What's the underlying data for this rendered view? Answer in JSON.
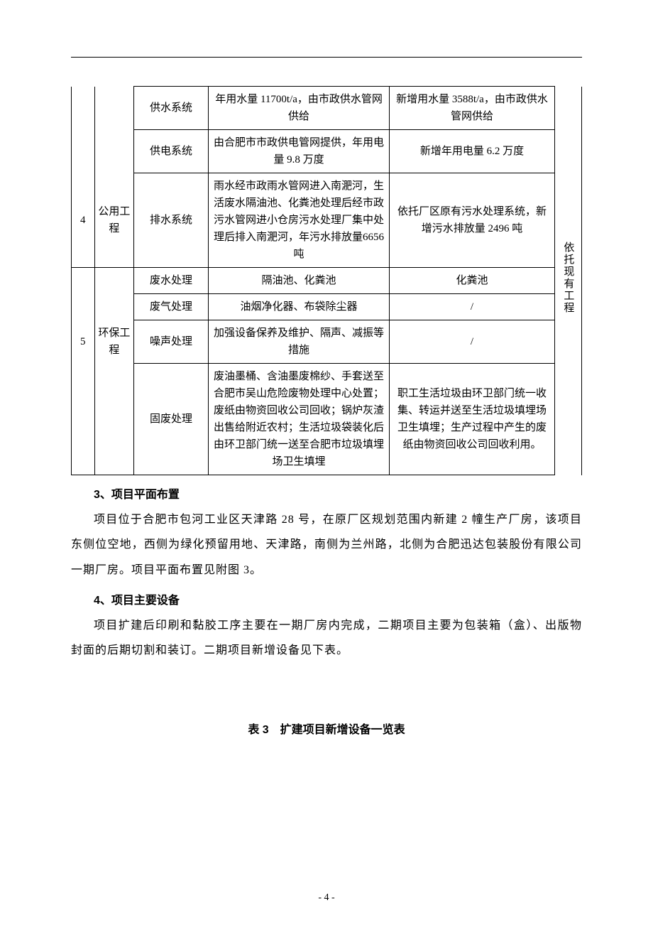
{
  "table": {
    "last_col": "依托现有工程",
    "sections": [
      {
        "idx": "4",
        "category": "公用工程",
        "rows": [
          {
            "sys": "供水系统",
            "d1": "年用水量 11700t/a，由市政供水管网供给",
            "d2": "新增用水量 3588t/a，由市政供水管网供给"
          },
          {
            "sys": "供电系统",
            "d1": "由合肥市市政供电管网提供，年用电量 9.8 万度",
            "d2": "新增年用电量 6.2 万度"
          },
          {
            "sys": "排水系统",
            "d1": "雨水经市政雨水管网进入南淝河，生活废水隔油池、化粪池处理后经市政污水管网进小仓房污水处理厂集中处理后排入南淝河，年污水排放量6656 吨",
            "d2": "依托厂区原有污水处理系统，新增污水排放量 2496 吨"
          }
        ]
      },
      {
        "idx": "5",
        "category": "环保工程",
        "rows": [
          {
            "sys": "废水处理",
            "d1": "隔油池、化粪池",
            "d2": "化粪池"
          },
          {
            "sys": "废气处理",
            "d1": "油烟净化器、布袋除尘器",
            "d2": "/"
          },
          {
            "sys": "噪声处理",
            "d1": "加强设备保养及维护、隔声、减振等措施",
            "d2": "/"
          },
          {
            "sys": "固废处理",
            "d1": "废油墨桶、含油墨废棉纱、手套送至合肥市吴山危险废物处理中心处置；废纸由物资回收公司回收；锅炉灰渣出售给附近农村；生活垃圾袋装化后由环卫部门统一送至合肥市垃圾填埋场卫生填埋",
            "d2": "职工生活垃圾由环卫部门统一收集、转运并送至生活垃圾填埋场卫生填埋；生产过程中产生的废纸由物资回收公司回收利用。"
          }
        ]
      }
    ]
  },
  "section3": {
    "heading": "3、项目平面布置",
    "para": "项目位于合肥市包河工业区天津路 28 号，在原厂区规划范围内新建 2 幢生产厂房，该项目东侧位空地，西侧为绿化预留用地、天津路，南侧为兰州路，北侧为合肥迅达包装股份有限公司一期厂房。项目平面布置见附图 3。"
  },
  "section4": {
    "heading": "4、项目主要设备",
    "para": "项目扩建后印刷和黏胶工序主要在一期厂房内完成，二期项目主要为包装箱（盒）、出版物封面的后期切割和装订。二期项目新增设备见下表。"
  },
  "table_caption": "表 3　扩建项目新增设备一览表",
  "page_number": "- 4 -"
}
